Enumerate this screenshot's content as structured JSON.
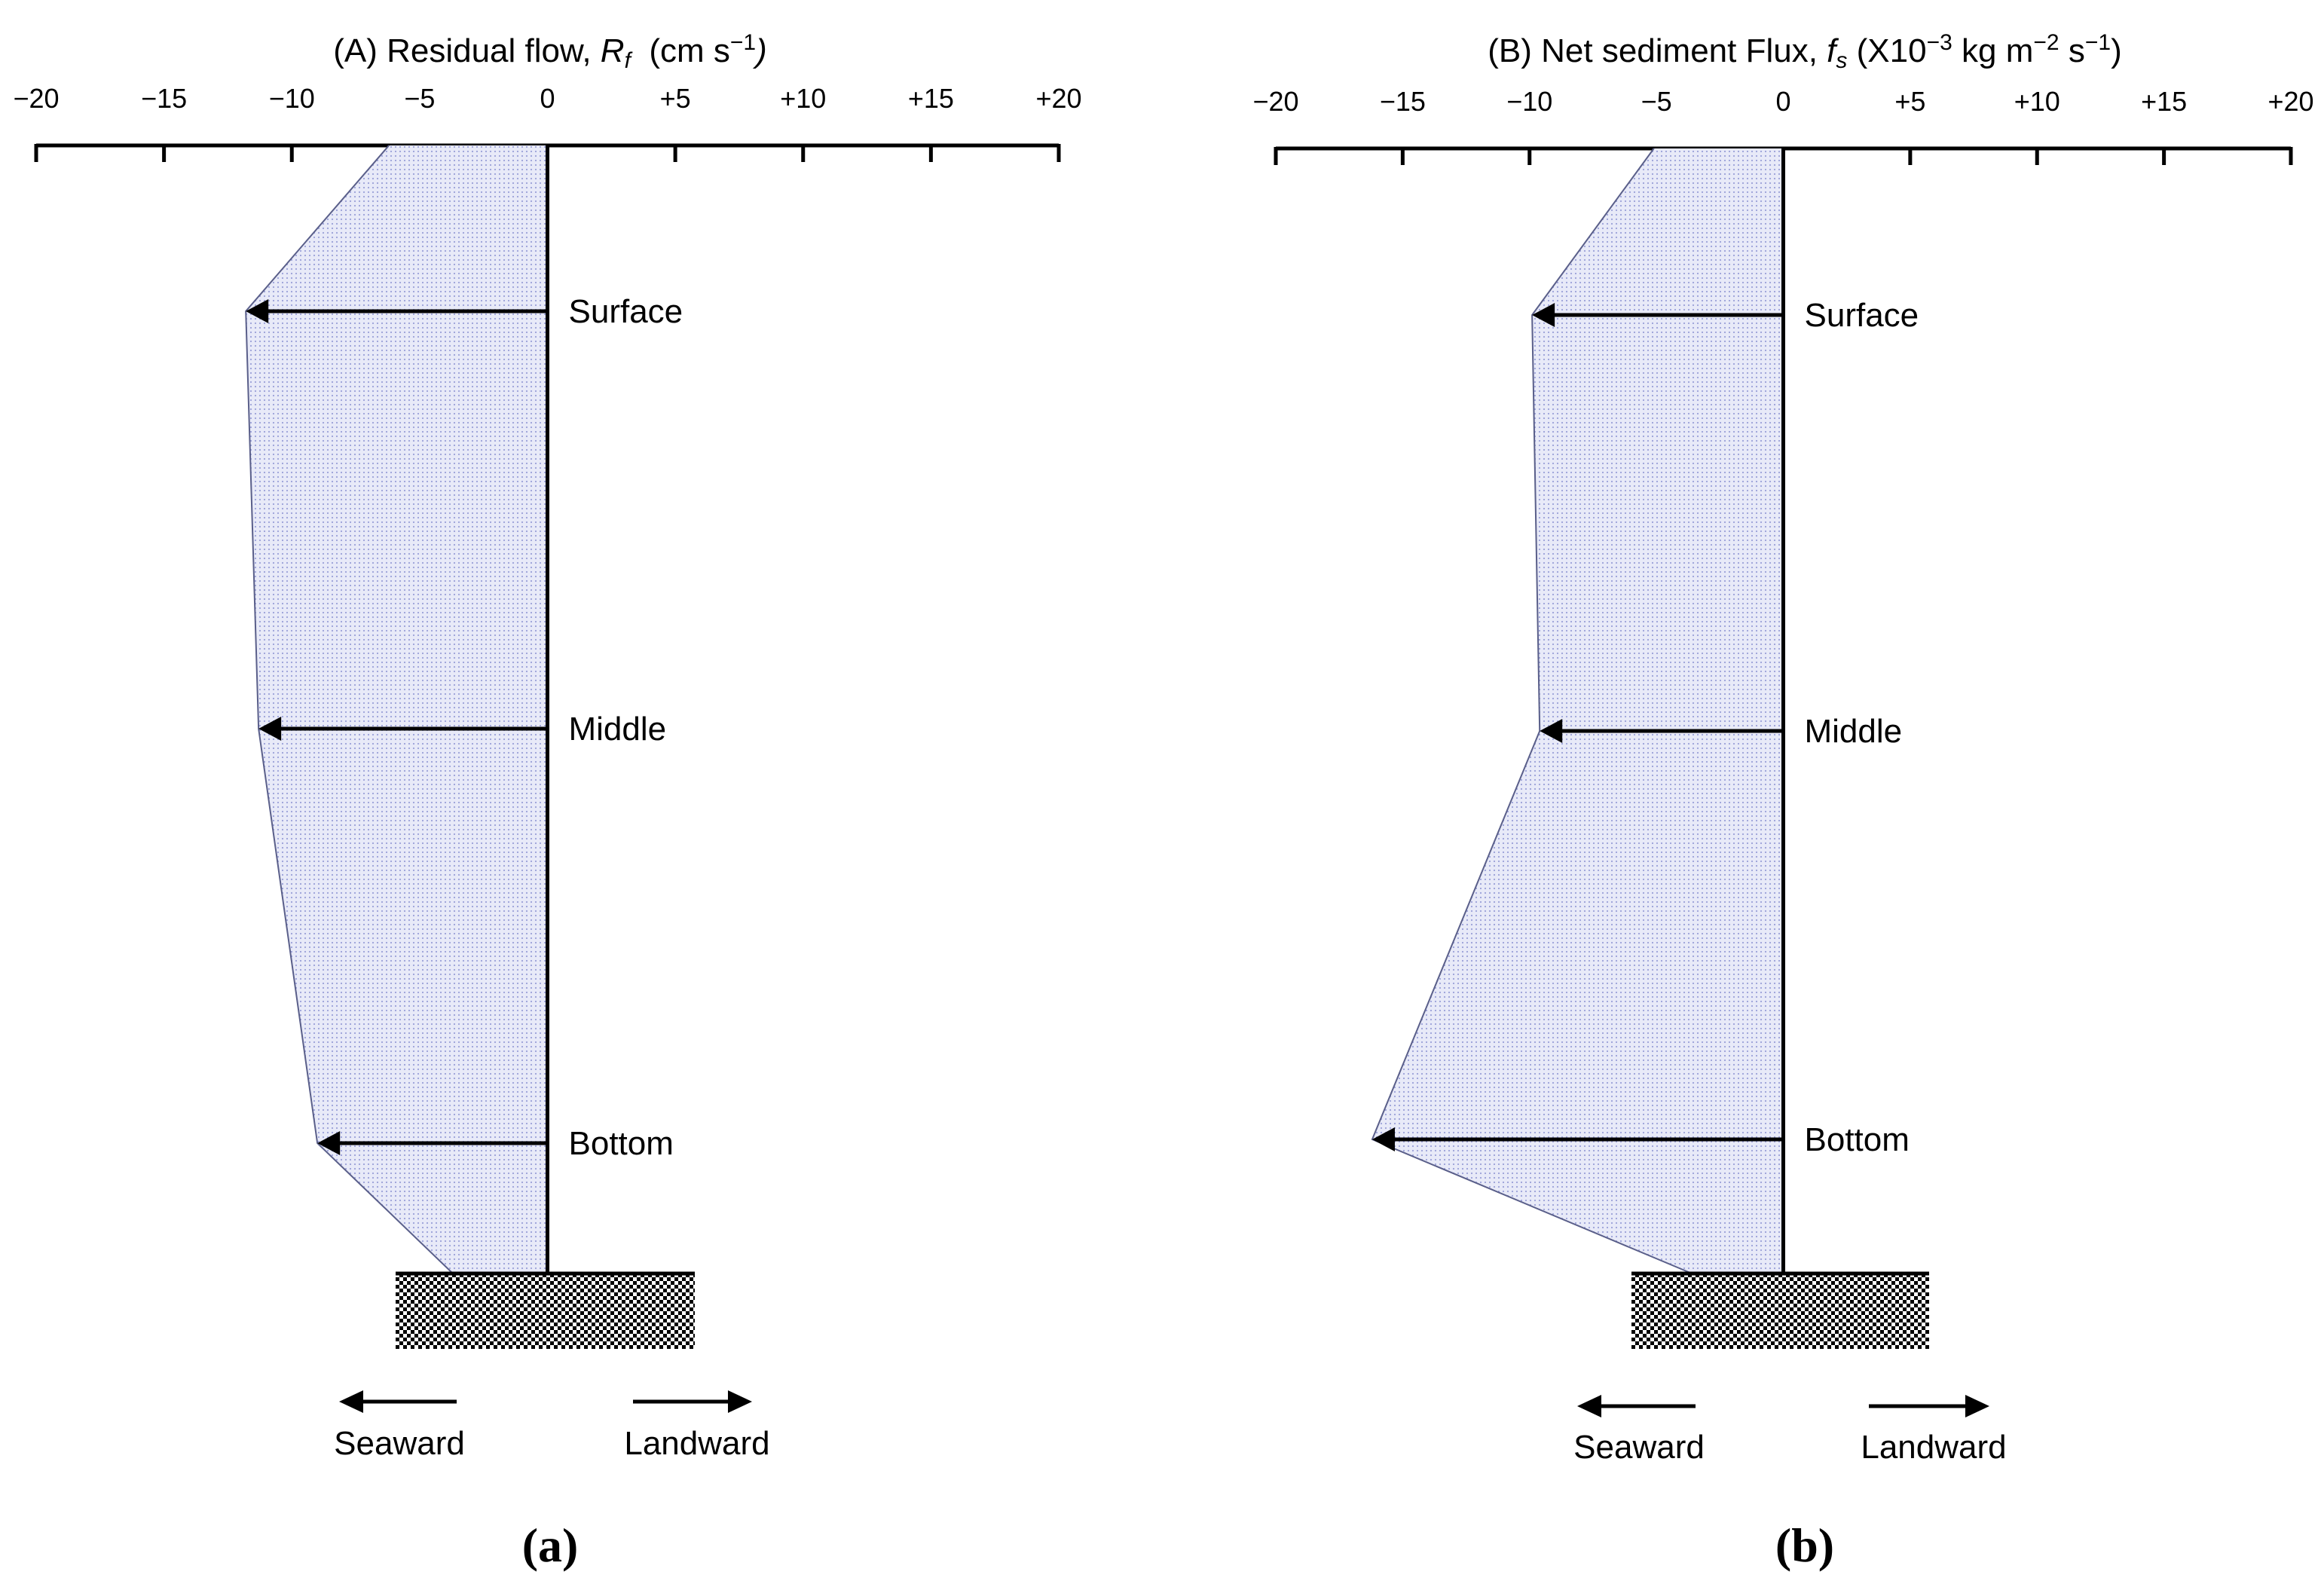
{
  "chart_data": [
    {
      "type": "area",
      "title_parts": {
        "prefix": "(A) Residual flow, ",
        "symbol": "R",
        "symbol_sub": "f",
        "unit_pre": "(cm s",
        "unit_exp": "−1",
        "unit_post": ")"
      },
      "x_tick_labels": [
        "−20",
        "−15",
        "−10",
        "−5",
        "0",
        "+5",
        "+10",
        "+15",
        "+20"
      ],
      "x_ticks": [
        -20,
        -15,
        -10,
        -5,
        0,
        5,
        10,
        15,
        20
      ],
      "xlim": [
        -20,
        20
      ],
      "levels": [
        "Surface",
        "Middle",
        "Bottom"
      ],
      "values": [
        -11.8,
        -11.3,
        -9.0
      ],
      "profile_top": -6.2,
      "profile_bed": -3.7,
      "direction_labels": {
        "seaward": "Seaward",
        "landward": "Landward"
      },
      "panel_label": "(a)",
      "fill_color": "#e6e8f8",
      "dot_color": "#9aa0d8"
    },
    {
      "type": "area",
      "title_parts": {
        "prefix": "(B) Net sediment Flux, ",
        "symbol": "f",
        "symbol_sub": "s",
        "unit_pre": "(X10",
        "unit_exp": "−3",
        "unit_mid1": " kg m",
        "unit_exp2": "−2",
        "unit_mid2": " s",
        "unit_exp3": "−1",
        "unit_post": ")"
      },
      "x_tick_labels": [
        "−20",
        "−15",
        "−10",
        "−5",
        "0",
        "+5",
        "+10",
        "+15",
        "+20"
      ],
      "x_ticks": [
        -20,
        -15,
        -10,
        -5,
        0,
        5,
        10,
        15,
        20
      ],
      "xlim": [
        -20,
        20
      ],
      "levels": [
        "Surface",
        "Middle",
        "Bottom"
      ],
      "values": [
        -9.9,
        -9.6,
        -16.2
      ],
      "profile_top": -5.1,
      "profile_bed": -3.6,
      "direction_labels": {
        "seaward": "Seaward",
        "landward": "Landward"
      },
      "panel_label": "(b)",
      "fill_color": "#e6e8f8",
      "dot_color": "#9aa0d8"
    }
  ]
}
